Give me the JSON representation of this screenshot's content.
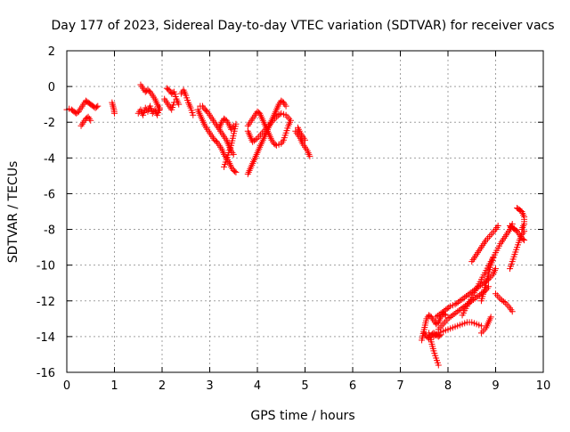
{
  "chart_data": {
    "type": "scatter",
    "title": "Day 177 of 2023, Sidereal Day-to-day VTEC variation (SDTVAR) for receiver vacs",
    "xlabel": "GPS time / hours",
    "ylabel": "SDTVAR / TECUs",
    "xlim": [
      0,
      10
    ],
    "ylim": [
      -16,
      2
    ],
    "xticks": [
      "0",
      "1",
      "2",
      "3",
      "4",
      "5",
      "6",
      "7",
      "8",
      "9",
      "10"
    ],
    "yticks": [
      "2",
      "0",
      "-2",
      "-4",
      "-6",
      "-8",
      "-10",
      "-12",
      "-14",
      "-16"
    ],
    "grid": true,
    "marker": "plus",
    "color": "#ff0000",
    "series": [
      {
        "segments": [
          [
            [
              0.0,
              -1.3
            ],
            [
              0.05,
              -1.25
            ],
            [
              0.1,
              -1.3
            ],
            [
              0.15,
              -1.4
            ],
            [
              0.2,
              -1.5
            ],
            [
              0.25,
              -1.4
            ],
            [
              0.3,
              -1.2
            ],
            [
              0.35,
              -1.0
            ],
            [
              0.4,
              -0.8
            ],
            [
              0.45,
              -0.9
            ],
            [
              0.5,
              -1.0
            ],
            [
              0.55,
              -1.1
            ],
            [
              0.6,
              -1.2
            ],
            [
              0.65,
              -1.1
            ]
          ],
          [
            [
              0.3,
              -2.2
            ],
            [
              0.35,
              -2.0
            ],
            [
              0.4,
              -1.8
            ],
            [
              0.45,
              -1.7
            ],
            [
              0.5,
              -1.9
            ]
          ],
          [
            [
              0.95,
              -0.9
            ],
            [
              0.97,
              -1.1
            ],
            [
              0.99,
              -1.3
            ],
            [
              1.0,
              -1.5
            ]
          ],
          [
            [
              1.5,
              -1.5
            ],
            [
              1.55,
              -1.3
            ],
            [
              1.6,
              -1.6
            ],
            [
              1.65,
              -1.2
            ],
            [
              1.7,
              -1.4
            ],
            [
              1.75,
              -1.1
            ],
            [
              1.8,
              -1.5
            ],
            [
              1.85,
              -1.3
            ],
            [
              1.9,
              -1.6
            ],
            [
              1.95,
              -1.2
            ]
          ],
          [
            [
              1.55,
              0.1
            ],
            [
              1.6,
              -0.1
            ],
            [
              1.65,
              -0.3
            ],
            [
              1.7,
              -0.2
            ],
            [
              1.75,
              -0.3
            ],
            [
              1.8,
              -0.5
            ],
            [
              1.85,
              -0.7
            ],
            [
              1.9,
              -1.0
            ],
            [
              1.95,
              -1.3
            ]
          ],
          [
            [
              2.05,
              -0.7
            ],
            [
              2.1,
              -0.9
            ],
            [
              2.15,
              -1.1
            ],
            [
              2.2,
              -1.3
            ],
            [
              2.25,
              -0.9
            ]
          ],
          [
            [
              2.1,
              -0.1
            ],
            [
              2.15,
              -0.2
            ],
            [
              2.2,
              -0.4
            ],
            [
              2.25,
              -0.3
            ],
            [
              2.3,
              -0.7
            ],
            [
              2.35,
              -1.0
            ]
          ],
          [
            [
              2.4,
              -0.4
            ],
            [
              2.45,
              -0.2
            ],
            [
              2.5,
              -0.5
            ],
            [
              2.55,
              -0.9
            ],
            [
              2.6,
              -1.2
            ],
            [
              2.65,
              -1.6
            ]
          ],
          [
            [
              2.75,
              -1.3
            ],
            [
              2.8,
              -1.6
            ],
            [
              2.85,
              -1.9
            ],
            [
              2.9,
              -2.2
            ],
            [
              2.95,
              -2.4
            ],
            [
              3.0,
              -2.6
            ],
            [
              3.05,
              -2.8
            ],
            [
              3.1,
              -3.0
            ],
            [
              3.15,
              -3.1
            ],
            [
              3.2,
              -3.3
            ],
            [
              3.25,
              -3.5
            ],
            [
              3.3,
              -3.8
            ],
            [
              3.35,
              -4.0
            ],
            [
              3.4,
              -4.2
            ],
            [
              3.45,
              -4.5
            ],
            [
              3.5,
              -4.7
            ],
            [
              3.55,
              -4.8
            ]
          ],
          [
            [
              2.8,
              -1.1
            ],
            [
              2.85,
              -1.1
            ],
            [
              2.9,
              -1.3
            ],
            [
              2.95,
              -1.4
            ],
            [
              3.0,
              -1.6
            ],
            [
              3.05,
              -1.8
            ],
            [
              3.1,
              -2.0
            ],
            [
              3.15,
              -2.2
            ],
            [
              3.2,
              -2.4
            ],
            [
              3.25,
              -2.6
            ],
            [
              3.3,
              -2.8
            ],
            [
              3.35,
              -3.0
            ],
            [
              3.4,
              -3.3
            ],
            [
              3.45,
              -3.6
            ],
            [
              3.5,
              -3.8
            ]
          ],
          [
            [
              3.2,
              -2.3
            ],
            [
              3.25,
              -2.0
            ],
            [
              3.3,
              -1.8
            ],
            [
              3.35,
              -1.9
            ],
            [
              3.4,
              -2.1
            ],
            [
              3.45,
              -2.4
            ],
            [
              3.5,
              -2.2
            ]
          ],
          [
            [
              3.3,
              -4.5
            ],
            [
              3.45,
              -3.3
            ],
            [
              3.55,
              -2.1
            ]
          ],
          [
            [
              3.8,
              -4.9
            ],
            [
              3.85,
              -4.6
            ],
            [
              3.9,
              -4.3
            ],
            [
              3.95,
              -4.0
            ],
            [
              4.0,
              -3.7
            ],
            [
              4.05,
              -3.4
            ],
            [
              4.1,
              -3.1
            ],
            [
              4.15,
              -2.8
            ],
            [
              4.2,
              -2.5
            ],
            [
              4.25,
              -2.2
            ],
            [
              4.3,
              -1.9
            ],
            [
              4.35,
              -1.6
            ],
            [
              4.4,
              -1.3
            ],
            [
              4.45,
              -1.0
            ],
            [
              4.5,
              -0.8
            ],
            [
              4.55,
              -0.9
            ],
            [
              4.6,
              -1.1
            ]
          ],
          [
            [
              3.8,
              -2.2
            ],
            [
              3.85,
              -2.0
            ],
            [
              3.9,
              -1.8
            ],
            [
              3.95,
              -1.6
            ],
            [
              4.0,
              -1.4
            ],
            [
              4.05,
              -1.5
            ],
            [
              4.1,
              -1.8
            ],
            [
              4.15,
              -2.1
            ],
            [
              4.2,
              -2.4
            ],
            [
              4.25,
              -2.7
            ],
            [
              4.3,
              -3.0
            ],
            [
              4.35,
              -3.2
            ],
            [
              4.4,
              -3.3
            ],
            [
              4.5,
              -3.2
            ],
            [
              4.55,
              -3.0
            ],
            [
              4.6,
              -2.6
            ],
            [
              4.65,
              -2.2
            ],
            [
              4.7,
              -1.9
            ],
            [
              4.6,
              -1.6
            ],
            [
              4.5,
              -1.5
            ],
            [
              4.4,
              -1.7
            ],
            [
              4.3,
              -2.0
            ],
            [
              4.2,
              -2.3
            ],
            [
              4.1,
              -2.6
            ],
            [
              4.0,
              -2.9
            ],
            [
              3.9,
              -3.1
            ],
            [
              3.85,
              -2.8
            ],
            [
              3.8,
              -2.5
            ]
          ],
          [
            [
              4.8,
              -2.5
            ],
            [
              4.85,
              -2.7
            ],
            [
              4.9,
              -2.9
            ],
            [
              4.95,
              -3.2
            ],
            [
              5.0,
              -3.4
            ],
            [
              5.05,
              -3.6
            ],
            [
              5.1,
              -3.9
            ]
          ],
          [
            [
              4.85,
              -2.3
            ],
            [
              4.9,
              -2.6
            ],
            [
              4.95,
              -2.8
            ],
            [
              5.0,
              -3.0
            ]
          ],
          [
            [
              7.45,
              -14.2
            ],
            [
              7.5,
              -13.6
            ],
            [
              7.55,
              -13.0
            ],
            [
              7.6,
              -12.8
            ],
            [
              7.65,
              -12.9
            ],
            [
              7.7,
              -13.1
            ],
            [
              7.75,
              -13.3
            ],
            [
              7.8,
              -13.2
            ],
            [
              7.85,
              -12.9
            ],
            [
              7.9,
              -12.7
            ],
            [
              7.95,
              -12.8
            ]
          ],
          [
            [
              7.5,
              -13.8
            ],
            [
              7.55,
              -14.0
            ],
            [
              7.6,
              -14.1
            ],
            [
              7.65,
              -13.9
            ],
            [
              7.7,
              -13.8
            ],
            [
              7.75,
              -13.9
            ],
            [
              7.8,
              -14.0
            ],
            [
              7.85,
              -13.9
            ]
          ],
          [
            [
              7.6,
              -13.8
            ],
            [
              7.65,
              -14.3
            ],
            [
              7.7,
              -14.8
            ],
            [
              7.75,
              -15.2
            ],
            [
              7.8,
              -15.6
            ]
          ],
          [
            [
              7.8,
              -13.6
            ],
            [
              7.9,
              -13.3
            ],
            [
              8.0,
              -13.0
            ],
            [
              8.1,
              -12.8
            ],
            [
              8.2,
              -12.6
            ],
            [
              8.3,
              -12.4
            ],
            [
              8.4,
              -12.2
            ],
            [
              8.5,
              -12.0
            ],
            [
              8.6,
              -11.8
            ],
            [
              8.7,
              -11.6
            ],
            [
              8.8,
              -11.4
            ],
            [
              8.85,
              -11.2
            ]
          ],
          [
            [
              7.7,
              -14.0
            ],
            [
              7.8,
              -13.8
            ],
            [
              7.9,
              -13.7
            ],
            [
              8.0,
              -13.6
            ],
            [
              8.1,
              -13.5
            ],
            [
              8.2,
              -13.4
            ],
            [
              8.3,
              -13.3
            ],
            [
              8.4,
              -13.2
            ],
            [
              8.5,
              -13.2
            ],
            [
              8.6,
              -13.3
            ],
            [
              8.7,
              -13.4
            ]
          ],
          [
            [
              7.75,
              -12.9
            ],
            [
              7.85,
              -12.7
            ],
            [
              7.95,
              -12.5
            ],
            [
              8.05,
              -12.3
            ],
            [
              8.15,
              -12.2
            ],
            [
              8.25,
              -12.0
            ],
            [
              8.35,
              -11.8
            ],
            [
              8.45,
              -11.6
            ],
            [
              8.55,
              -11.4
            ],
            [
              8.65,
              -11.2
            ],
            [
              8.75,
              -11.0
            ],
            [
              8.85,
              -10.8
            ],
            [
              8.95,
              -10.5
            ],
            [
              9.0,
              -10.2
            ]
          ],
          [
            [
              8.3,
              -12.8
            ],
            [
              8.4,
              -12.3
            ],
            [
              8.5,
              -11.8
            ],
            [
              8.6,
              -11.3
            ],
            [
              8.7,
              -10.8
            ],
            [
              8.8,
              -10.3
            ],
            [
              8.9,
              -9.8
            ],
            [
              9.0,
              -9.3
            ],
            [
              9.1,
              -8.8
            ],
            [
              9.2,
              -8.4
            ],
            [
              9.3,
              -8.0
            ],
            [
              9.35,
              -7.7
            ]
          ],
          [
            [
              8.5,
              -9.8
            ],
            [
              8.6,
              -9.4
            ],
            [
              8.7,
              -9.0
            ],
            [
              8.8,
              -8.6
            ],
            [
              8.9,
              -8.3
            ],
            [
              9.0,
              -8.0
            ],
            [
              9.05,
              -7.8
            ]
          ],
          [
            [
              8.7,
              -12.0
            ],
            [
              8.75,
              -11.5
            ],
            [
              8.8,
              -11.0
            ],
            [
              8.85,
              -10.5
            ],
            [
              8.9,
              -10.0
            ],
            [
              8.95,
              -9.6
            ]
          ],
          [
            [
              8.7,
              -13.8
            ],
            [
              8.8,
              -13.5
            ],
            [
              8.85,
              -13.2
            ],
            [
              8.9,
              -12.9
            ]
          ],
          [
            [
              9.0,
              -11.6
            ],
            [
              9.1,
              -11.9
            ],
            [
              9.2,
              -12.1
            ],
            [
              9.3,
              -12.4
            ],
            [
              9.35,
              -12.6
            ]
          ],
          [
            [
              9.3,
              -10.2
            ],
            [
              9.35,
              -9.8
            ],
            [
              9.4,
              -9.4
            ],
            [
              9.45,
              -9.0
            ],
            [
              9.5,
              -8.6
            ],
            [
              9.55,
              -8.3
            ],
            [
              9.6,
              -8.1
            ]
          ],
          [
            [
              9.3,
              -7.8
            ],
            [
              9.35,
              -7.9
            ],
            [
              9.4,
              -8.0
            ],
            [
              9.45,
              -8.1
            ],
            [
              9.5,
              -8.3
            ],
            [
              9.55,
              -8.5
            ],
            [
              9.6,
              -8.6
            ]
          ],
          [
            [
              9.45,
              -6.8
            ],
            [
              9.5,
              -6.9
            ],
            [
              9.55,
              -7.0
            ],
            [
              9.6,
              -7.3
            ],
            [
              9.6,
              -7.7
            ],
            [
              9.55,
              -8.0
            ]
          ]
        ]
      }
    ]
  }
}
